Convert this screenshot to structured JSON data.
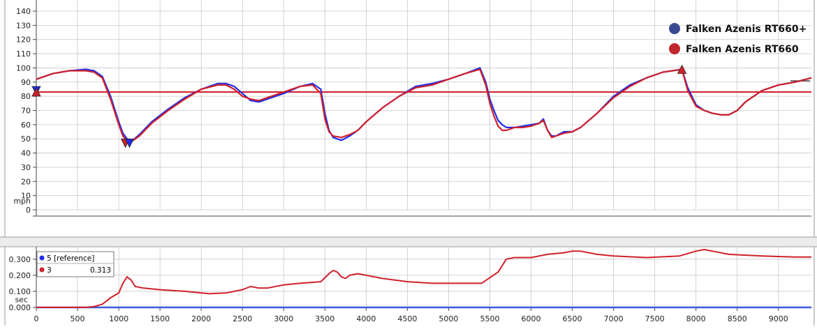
{
  "legend": {
    "items": [
      {
        "label": "Falken Azenis RT660+",
        "color": "#3b4a8f"
      },
      {
        "label": "Falken Azenis RT660",
        "color": "#c0262d"
      }
    ]
  },
  "info_box": {
    "rows": [
      {
        "label": "5 [reference]",
        "value": "",
        "color": "#1f2de8"
      },
      {
        "label": "3",
        "value": "0.313",
        "color": "#d0202a"
      }
    ]
  },
  "colors": {
    "series_a": "#1f2de8",
    "series_b": "#d0202a",
    "grid": "#c8c8c8",
    "reference_line": "#d0202a",
    "x_axis_line": "#3a5bd8"
  },
  "chart_data": [
    {
      "type": "line",
      "panel": "speed",
      "y_unit_label": "mph",
      "ylim": [
        0,
        140
      ],
      "y_ticks": [
        "0",
        "10",
        "20",
        "30",
        "40",
        "50",
        "60",
        "70",
        "80",
        "90",
        "100",
        "110",
        "120",
        "130",
        "140"
      ],
      "xlim": [
        0,
        9400
      ],
      "grid": true,
      "legend_position": "top-right",
      "reference_line": 83,
      "series": [
        {
          "name": "Falken Azenis RT660+",
          "x": [
            0,
            200,
            400,
            600,
            700,
            800,
            900,
            1000,
            1050,
            1100,
            1150,
            1250,
            1400,
            1600,
            1800,
            2000,
            2200,
            2300,
            2400,
            2500,
            2600,
            2700,
            2800,
            3000,
            3200,
            3350,
            3450,
            3500,
            3550,
            3600,
            3700,
            3800,
            3900,
            4000,
            4200,
            4400,
            4600,
            4800,
            5000,
            5200,
            5380,
            5450,
            5500,
            5550,
            5600,
            5650,
            5700,
            5750,
            5800,
            5900,
            6000,
            6100,
            6150,
            6200,
            6250,
            6300,
            6400,
            6500,
            6600,
            6800,
            7000,
            7200,
            7400,
            7600,
            7830,
            7900,
            8000,
            8100,
            8200,
            8300,
            8400,
            8500,
            8600,
            8800,
            9000,
            9200,
            9400
          ],
          "y": [
            92,
            96,
            98,
            99,
            98,
            94,
            80,
            62,
            54,
            50,
            48,
            53,
            62,
            71,
            79,
            85,
            89,
            89,
            87,
            82,
            77,
            76,
            78,
            82,
            87,
            89,
            85,
            68,
            56,
            51,
            49,
            52,
            56,
            62,
            72,
            80,
            87,
            89,
            92,
            96,
            100,
            90,
            78,
            70,
            63,
            60,
            58,
            58,
            58,
            59,
            60,
            61,
            64,
            56,
            52,
            52,
            55,
            55,
            58,
            68,
            80,
            88,
            93,
            97,
            99,
            86,
            74,
            70,
            68,
            67,
            67,
            70,
            76,
            84,
            88,
            90,
            93
          ]
        },
        {
          "name": "Falken Azenis RT660",
          "x": [
            0,
            200,
            400,
            600,
            700,
            800,
            900,
            1000,
            1050,
            1100,
            1150,
            1250,
            1400,
            1600,
            1800,
            2000,
            2200,
            2300,
            2400,
            2500,
            2600,
            2700,
            2800,
            3000,
            3200,
            3350,
            3450,
            3500,
            3550,
            3600,
            3700,
            3800,
            3900,
            4000,
            4200,
            4400,
            4600,
            4800,
            5000,
            5200,
            5380,
            5450,
            5500,
            5550,
            5600,
            5650,
            5700,
            5750,
            5800,
            5900,
            6000,
            6100,
            6150,
            6200,
            6250,
            6300,
            6400,
            6500,
            6600,
            6800,
            7000,
            7200,
            7400,
            7600,
            7830,
            7900,
            8000,
            8100,
            8200,
            8300,
            8400,
            8500,
            8600,
            8800,
            9000,
            9200,
            9400
          ],
          "y": [
            92,
            96,
            98,
            98,
            97,
            93,
            78,
            60,
            52,
            49,
            48,
            52,
            61,
            70,
            78,
            85,
            88,
            88,
            85,
            80,
            78,
            77,
            79,
            83,
            87,
            88,
            82,
            64,
            55,
            52,
            51,
            53,
            56,
            62,
            72,
            80,
            86,
            88,
            92,
            96,
            99,
            88,
            75,
            66,
            59,
            56,
            56,
            57,
            58,
            58,
            59,
            61,
            63,
            56,
            51,
            52,
            54,
            55,
            58,
            68,
            79,
            87,
            93,
            97,
            99,
            84,
            73,
            70,
            68,
            67,
            67,
            70,
            76,
            84,
            88,
            90,
            93
          ]
        }
      ],
      "markers": [
        {
          "series": 0,
          "shape": "triangle-down",
          "x": 0,
          "y": 84
        },
        {
          "series": 1,
          "shape": "triangle-up",
          "x": 0,
          "y": 83
        },
        {
          "series": 1,
          "shape": "triangle-down",
          "x": 1080,
          "y": 47
        },
        {
          "series": 0,
          "shape": "triangle-down",
          "x": 1130,
          "y": 47
        },
        {
          "series": 1,
          "shape": "triangle-up",
          "x": 7830,
          "y": 99
        }
      ]
    },
    {
      "type": "line",
      "panel": "time-difference",
      "y_unit_label": "sec",
      "ylim": [
        0,
        0.36
      ],
      "y_ticks": [
        "0.000",
        "0.100",
        "0.200",
        "0.300"
      ],
      "xlim": [
        0,
        9400
      ],
      "x_ticks": [
        "0",
        "500",
        "1000",
        "1500",
        "2000",
        "2500",
        "3000",
        "3500",
        "4000",
        "4500",
        "5000",
        "5500",
        "6000",
        "6500",
        "7000",
        "7500",
        "8000",
        "8500",
        "9000"
      ],
      "grid": true,
      "series": [
        {
          "name": "3",
          "x": [
            0,
            600,
            700,
            800,
            900,
            1000,
            1050,
            1100,
            1150,
            1200,
            1300,
            1500,
            1800,
            2100,
            2300,
            2500,
            2600,
            2700,
            2800,
            3000,
            3200,
            3450,
            3550,
            3600,
            3650,
            3700,
            3750,
            3800,
            3900,
            4000,
            4200,
            4500,
            4800,
            5100,
            5400,
            5600,
            5700,
            5800,
            6000,
            6200,
            6400,
            6500,
            6600,
            6800,
            7000,
            7400,
            7800,
            8000,
            8100,
            8200,
            8400,
            8800,
            9200,
            9400
          ],
          "y": [
            0,
            0,
            0.005,
            0.02,
            0.06,
            0.09,
            0.15,
            0.19,
            0.17,
            0.13,
            0.12,
            0.11,
            0.1,
            0.085,
            0.09,
            0.11,
            0.13,
            0.12,
            0.12,
            0.14,
            0.15,
            0.16,
            0.21,
            0.23,
            0.22,
            0.19,
            0.18,
            0.2,
            0.21,
            0.2,
            0.18,
            0.16,
            0.15,
            0.15,
            0.15,
            0.22,
            0.3,
            0.31,
            0.31,
            0.33,
            0.34,
            0.35,
            0.35,
            0.33,
            0.32,
            0.31,
            0.32,
            0.35,
            0.36,
            0.35,
            0.33,
            0.32,
            0.313,
            0.313
          ]
        }
      ]
    }
  ]
}
